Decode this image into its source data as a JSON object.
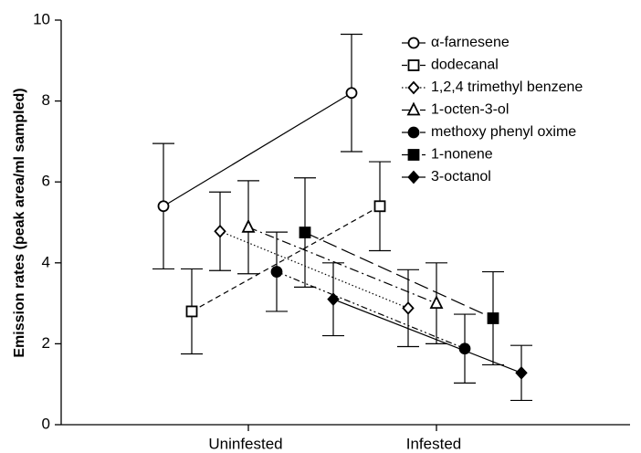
{
  "chart_data": {
    "type": "line",
    "y_label": "Emission rates (peak area/ml sampled)",
    "categories": [
      "Uninfested",
      "Infested"
    ],
    "ylim": [
      0,
      10
    ],
    "yticks": [
      0,
      2,
      4,
      6,
      8,
      10
    ],
    "legend": "top-right",
    "series": [
      {
        "name": "α-farnesene",
        "color": "#000000",
        "marker": "circle-open",
        "dash": "solid",
        "values": [
          5.4,
          8.2
        ],
        "errors": [
          1.55,
          1.45
        ]
      },
      {
        "name": "dodecanal",
        "color": "#000000",
        "marker": "square-open",
        "dash": "dashed",
        "values": [
          2.8,
          5.4
        ],
        "errors": [
          1.05,
          1.1
        ]
      },
      {
        "name": "1,2,4 trimethyl benzene",
        "color": "#000000",
        "marker": "diamond-open",
        "dash": "dotted",
        "values": [
          4.78,
          2.88
        ],
        "errors": [
          0.97,
          0.95
        ]
      },
      {
        "name": "1-octen-3-ol",
        "color": "#000000",
        "marker": "triangle-open",
        "dash": "dashdot",
        "values": [
          4.88,
          3.0
        ],
        "errors": [
          1.15,
          1.0
        ]
      },
      {
        "name": "methoxy phenyl oxime",
        "color": "#000000",
        "marker": "circle",
        "dash": "dashdotdot",
        "values": [
          3.78,
          1.88
        ],
        "errors": [
          0.98,
          0.85
        ]
      },
      {
        "name": "1-nonene",
        "color": "#000000",
        "marker": "square",
        "dash": "longdash",
        "values": [
          4.75,
          2.63
        ],
        "errors": [
          1.35,
          1.15
        ]
      },
      {
        "name": "3-octanol",
        "color": "#000000",
        "marker": "diamond",
        "dash": "solid",
        "values": [
          3.1,
          1.28
        ],
        "errors": [
          0.9,
          0.68
        ]
      }
    ]
  }
}
